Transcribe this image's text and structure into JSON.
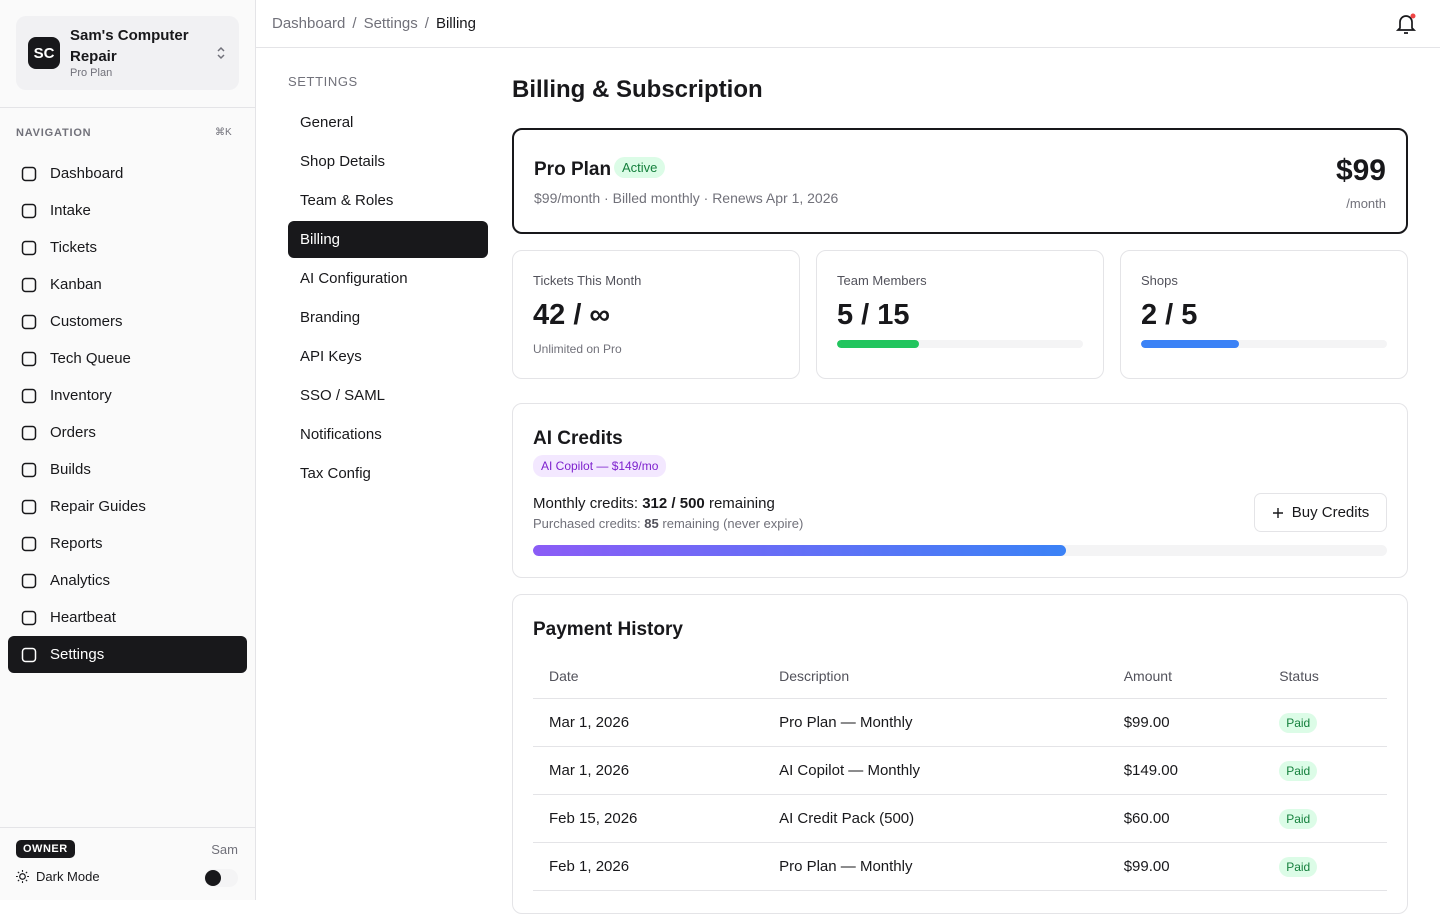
{
  "workspace": {
    "initials": "SC",
    "name": "Sam's Computer Repair",
    "plan": "Pro Plan"
  },
  "sidebar": {
    "section": "NAVIGATION",
    "shortcut": "⌘K",
    "items": [
      {
        "label": "Dashboard"
      },
      {
        "label": "Intake"
      },
      {
        "label": "Tickets"
      },
      {
        "label": "Kanban"
      },
      {
        "label": "Customers"
      },
      {
        "label": "Tech Queue"
      },
      {
        "label": "Inventory"
      },
      {
        "label": "Orders"
      },
      {
        "label": "Builds"
      },
      {
        "label": "Repair Guides"
      },
      {
        "label": "Reports"
      },
      {
        "label": "Analytics"
      },
      {
        "label": "Heartbeat"
      },
      {
        "label": "Settings",
        "active": true
      }
    ]
  },
  "user": {
    "role": "OWNER",
    "name": "Sam",
    "dark_mode": "Dark Mode"
  },
  "breadcrumb": {
    "separator": "/",
    "items": [
      "Dashboard",
      "Settings",
      "Billing"
    ]
  },
  "settings_nav": {
    "heading": "SETTINGS",
    "items": [
      {
        "label": "General"
      },
      {
        "label": "Shop Details"
      },
      {
        "label": "Team & Roles"
      },
      {
        "label": "Billing",
        "active": true
      },
      {
        "label": "AI Configuration"
      },
      {
        "label": "Branding"
      },
      {
        "label": "API Keys"
      },
      {
        "label": "SSO / SAML"
      },
      {
        "label": "Notifications"
      },
      {
        "label": "Tax Config"
      }
    ]
  },
  "page": {
    "title": "Billing & Subscription"
  },
  "plan": {
    "name": "Pro Plan",
    "status": "Active",
    "details": "$99/month · Billed monthly · Renews Apr 1, 2026",
    "price": "$99",
    "period": "/month"
  },
  "usage": [
    {
      "label": "Tickets This Month",
      "value_label": "42 / ∞",
      "note": "Unlimited on Pro"
    },
    {
      "label": "Team Members",
      "value_label": "5 / 15",
      "used": 5,
      "limit": 15,
      "color": "#22c55e"
    },
    {
      "label": "Shops",
      "value_label": "2 / 5",
      "used": 2,
      "limit": 5,
      "color": "#3b82f6"
    }
  ],
  "ai_credits": {
    "title": "AI Credits",
    "addon": "AI Copilot — $149/mo",
    "monthly": {
      "label": "Monthly credits:",
      "value_label": "312 / 500",
      "suffix": "remaining",
      "remaining": 312,
      "total": 500
    },
    "purchased": {
      "label": "Purchased credits:",
      "value_label": "85",
      "suffix": "remaining (never expire)"
    },
    "button": "Buy Credits"
  },
  "payments": {
    "title": "Payment History",
    "columns": [
      "Date",
      "Description",
      "Amount",
      "Status"
    ],
    "rows": [
      [
        "Mar 1, 2026",
        "Pro Plan — Monthly",
        "$99.00",
        "Paid"
      ],
      [
        "Mar 1, 2026",
        "AI Copilot — Monthly",
        "$149.00",
        "Paid"
      ],
      [
        "Feb 15, 2026",
        "AI Credit Pack (500)",
        "$60.00",
        "Paid"
      ],
      [
        "Feb 1, 2026",
        "Pro Plan — Monthly",
        "$99.00",
        "Paid"
      ]
    ]
  }
}
